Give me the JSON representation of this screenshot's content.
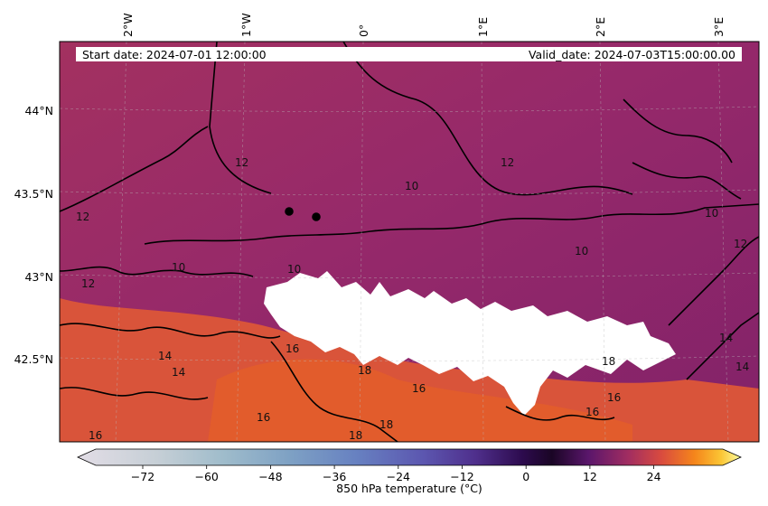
{
  "header": {
    "start_date": "Start date: 2024-07-01 12:00:00",
    "valid_date": "Valid_date: 2024-07-03T15:00:00.00"
  },
  "lon_ticks": [
    "2°W",
    "1°W",
    "0°",
    "1°E",
    "2°E",
    "3°E"
  ],
  "lat_ticks": [
    "44°N",
    "43.5°N",
    "43°N",
    "42.5°N"
  ],
  "contour_labels": [
    "12",
    "12",
    "10",
    "10",
    "10",
    "10",
    "12",
    "12",
    "14",
    "14",
    "16",
    "16",
    "18",
    "18",
    "18",
    "18",
    "16",
    "16",
    "14",
    "16",
    "16",
    "14",
    "10",
    "12"
  ],
  "colorbar": {
    "label": "850 hPa temperature (°C)",
    "ticks": [
      "−72",
      "−60",
      "−48",
      "−36",
      "−24",
      "−12",
      "0",
      "12",
      "24"
    ],
    "min": -80,
    "max": 32,
    "extend": "both",
    "colormap": "inferno-over-bone"
  },
  "colors": {
    "field_warm": "#e0582f",
    "field_mid": "#a8305a",
    "field_cool": "#8a2468",
    "masked": "#ffffff",
    "contour": "#000000"
  }
}
